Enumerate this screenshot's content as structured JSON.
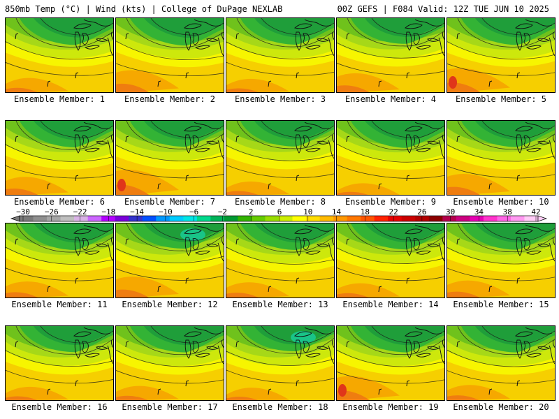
{
  "header": {
    "left": "850mb Temp (°C) | Wind (kts) | College of DuPage NEXLAB",
    "right": "00Z GEFS | F084 Valid: 12Z TUE JUN 10 2025"
  },
  "member_label_prefix": "Ensemble Member: ",
  "members": [
    {
      "id": "1",
      "warm": 0.35,
      "cool": 0.45
    },
    {
      "id": "2",
      "warm": 0.75,
      "cool": 0.35
    },
    {
      "id": "3",
      "warm": 0.3,
      "cool": 0.5
    },
    {
      "id": "4",
      "warm": 0.6,
      "cool": 0.65
    },
    {
      "id": "5",
      "warm": 0.85,
      "cool": 0.45
    },
    {
      "id": "6",
      "warm": 0.55,
      "cool": 0.5
    },
    {
      "id": "7",
      "warm": 0.9,
      "cool": 0.6
    },
    {
      "id": "8",
      "warm": 0.3,
      "cool": 0.65
    },
    {
      "id": "9",
      "warm": 0.2,
      "cool": 0.4
    },
    {
      "id": "10",
      "warm": 0.7,
      "cool": 0.55
    },
    {
      "id": "11",
      "warm": 0.45,
      "cool": 0.5
    },
    {
      "id": "12",
      "warm": 0.7,
      "cool": 0.75
    },
    {
      "id": "13",
      "warm": 0.4,
      "cool": 0.5
    },
    {
      "id": "14",
      "warm": 0.35,
      "cool": 0.6
    },
    {
      "id": "15",
      "warm": 0.5,
      "cool": 0.55
    },
    {
      "id": "16",
      "warm": 0.3,
      "cool": 0.6
    },
    {
      "id": "17",
      "warm": 0.35,
      "cool": 0.55
    },
    {
      "id": "18",
      "warm": 0.25,
      "cool": 0.75
    },
    {
      "id": "19",
      "warm": 0.85,
      "cool": 0.55
    },
    {
      "id": "20",
      "warm": 0.4,
      "cool": 0.55
    }
  ],
  "colorbar": {
    "labels": [
      "−30",
      "−26",
      "−22",
      "−18",
      "−14",
      "−10",
      "−6",
      "−2",
      "2",
      "6",
      "10",
      "14",
      "18",
      "22",
      "26",
      "30",
      "34",
      "38",
      "42"
    ],
    "colors": [
      "#7a7a7a",
      "#8f8f8f",
      "#a6a6a6",
      "#bfbfbf",
      "#d9b3e6",
      "#cc66ff",
      "#b300ff",
      "#7a00d9",
      "#3333cc",
      "#0050ff",
      "#0099ff",
      "#00ccff",
      "#00e6e6",
      "#00d98c",
      "#00b359",
      "#009933",
      "#33b300",
      "#66cc00",
      "#99dd00",
      "#ccee00",
      "#ffff00",
      "#ffdd00",
      "#ffbb00",
      "#ff9900",
      "#ff7700",
      "#ff5500",
      "#ff2200",
      "#e60000",
      "#cc0000",
      "#b30000",
      "#8c0000",
      "#b3004d",
      "#cc0080",
      "#e600b3",
      "#ff33cc",
      "#ff66e6",
      "#ff99f2",
      "#ffccf7"
    ]
  },
  "field_colors": {
    "dkgreen": "#1f9e3a",
    "green": "#33b335",
    "ltgreen": "#6fc21c",
    "ygreen": "#a6d818",
    "lime": "#cde80c",
    "yellow": "#f7f500",
    "gold": "#f6cf00",
    "orange": "#f6a800",
    "dorange": "#ef7d10",
    "red": "#e0361a",
    "teal": "#19c488"
  }
}
